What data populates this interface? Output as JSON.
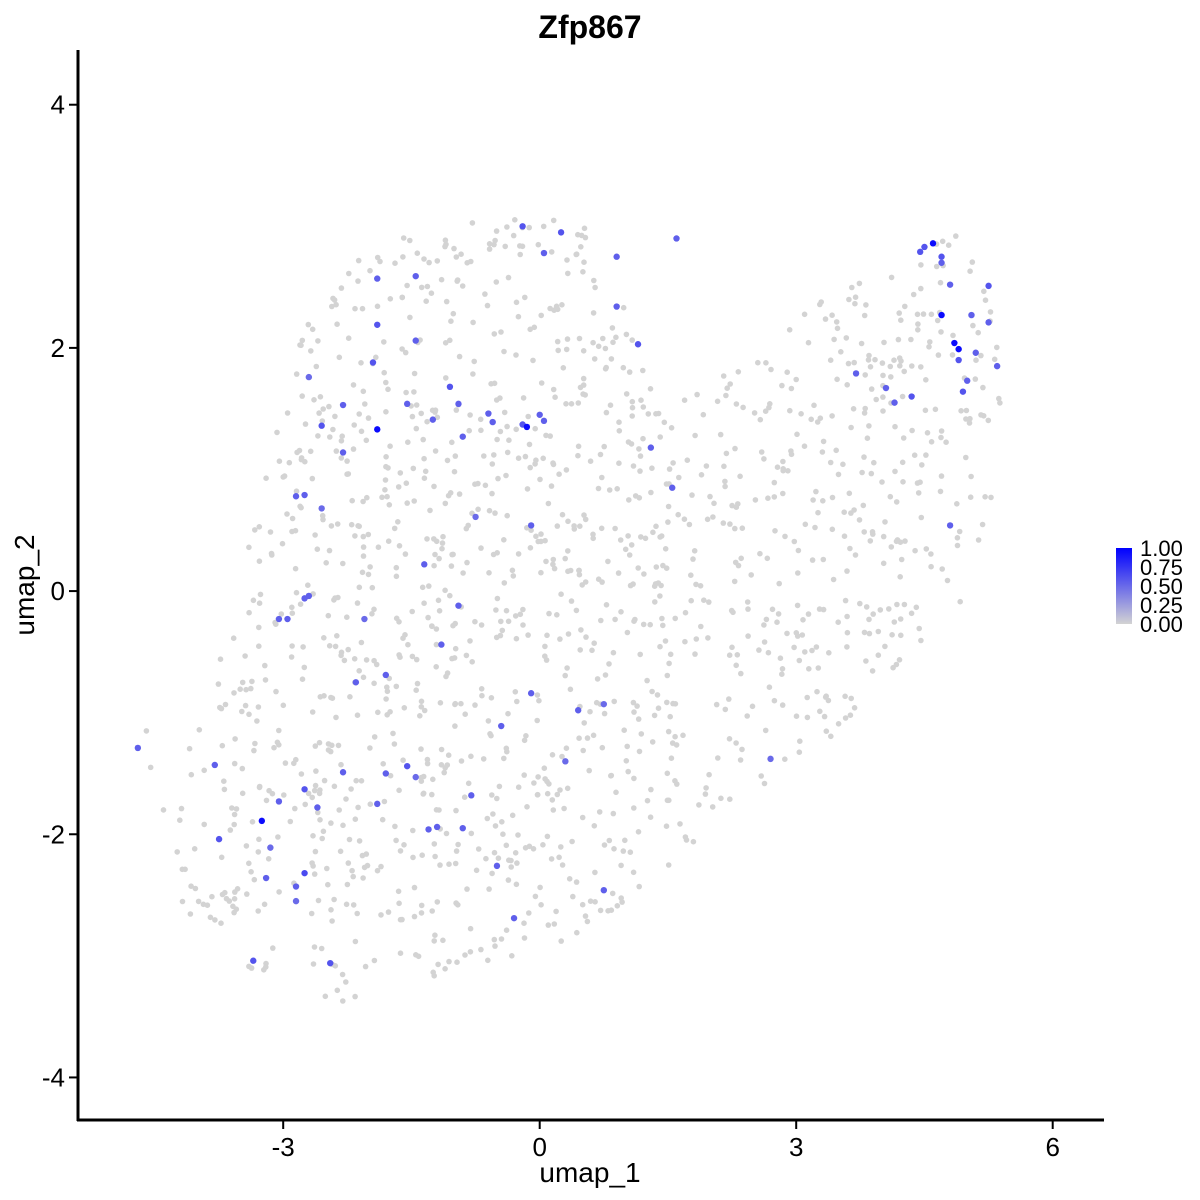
{
  "chart_data": {
    "type": "scatter",
    "title": "Zfp867",
    "xlabel": "umap_1",
    "ylabel": "umap_2",
    "xlim": [
      -5.4,
      6.6
    ],
    "ylim": [
      -4.35,
      4.45
    ],
    "x_ticks": [
      -3,
      0,
      3,
      6
    ],
    "y_ticks": [
      -4,
      -2,
      0,
      2,
      4
    ],
    "x_tick_labels": [
      "-3",
      "0",
      "3",
      "6"
    ],
    "y_tick_labels": [
      "-4",
      "-2",
      "0",
      "2",
      "4"
    ],
    "grid": false,
    "legend": {
      "placement": "right",
      "type": "colorbar",
      "ticks": [
        1.0,
        0.75,
        0.5,
        0.25,
        0.0
      ],
      "labels": [
        "1.00",
        "0.75",
        "0.50",
        "0.25",
        "0.00"
      ],
      "low_color": "#d3d3d3",
      "high_color": "#0000ff"
    },
    "zero_expression_color": "#d3d3d3",
    "background_cells_estimated_count": 1500,
    "expressing_cells": [
      {
        "x": -4.7,
        "y": -1.29,
        "value": 0.55
      },
      {
        "x": -3.8,
        "y": -1.43,
        "value": 0.55
      },
      {
        "x": -3.75,
        "y": -2.04,
        "value": 0.6
      },
      {
        "x": -3.25,
        "y": -1.89,
        "value": 0.95
      },
      {
        "x": -3.15,
        "y": -2.11,
        "value": 0.5
      },
      {
        "x": -3.05,
        "y": -1.73,
        "value": 0.55
      },
      {
        "x": -3.2,
        "y": -2.36,
        "value": 0.55
      },
      {
        "x": -2.85,
        "y": -2.43,
        "value": 0.55
      },
      {
        "x": -2.85,
        "y": -2.55,
        "value": 0.5
      },
      {
        "x": -2.75,
        "y": -2.32,
        "value": 0.65
      },
      {
        "x": -2.75,
        "y": -1.63,
        "value": 0.6
      },
      {
        "x": -2.6,
        "y": -1.78,
        "value": 0.55
      },
      {
        "x": -3.35,
        "y": -3.04,
        "value": 0.6
      },
      {
        "x": -2.45,
        "y": -3.06,
        "value": 0.6
      },
      {
        "x": -2.3,
        "y": -1.49,
        "value": 0.55
      },
      {
        "x": -1.9,
        "y": -1.75,
        "value": 0.55
      },
      {
        "x": -1.8,
        "y": -1.5,
        "value": 0.55
      },
      {
        "x": -1.55,
        "y": -1.44,
        "value": 0.6
      },
      {
        "x": -1.45,
        "y": -1.53,
        "value": 0.5
      },
      {
        "x": -1.3,
        "y": -1.96,
        "value": 0.55
      },
      {
        "x": -1.2,
        "y": -1.94,
        "value": 0.55
      },
      {
        "x": -0.9,
        "y": -1.95,
        "value": 0.55
      },
      {
        "x": -0.8,
        "y": -1.68,
        "value": 0.55
      },
      {
        "x": -0.5,
        "y": -2.26,
        "value": 0.55
      },
      {
        "x": -0.3,
        "y": -2.69,
        "value": 0.55
      },
      {
        "x": 0.75,
        "y": -2.46,
        "value": 0.55
      },
      {
        "x": -0.45,
        "y": -1.11,
        "value": 0.55
      },
      {
        "x": -0.1,
        "y": -0.84,
        "value": 0.55
      },
      {
        "x": 0.3,
        "y": -1.4,
        "value": 0.5
      },
      {
        "x": 0.45,
        "y": -0.98,
        "value": 0.55
      },
      {
        "x": 0.75,
        "y": -0.93,
        "value": 0.5
      },
      {
        "x": 2.7,
        "y": -1.38,
        "value": 0.5
      },
      {
        "x": -2.15,
        "y": -0.75,
        "value": 0.55
      },
      {
        "x": -1.8,
        "y": -0.69,
        "value": 0.55
      },
      {
        "x": -1.15,
        "y": -0.44,
        "value": 0.55
      },
      {
        "x": -2.95,
        "y": -0.23,
        "value": 0.55
      },
      {
        "x": -3.05,
        "y": -0.23,
        "value": 0.55
      },
      {
        "x": -2.7,
        "y": -0.04,
        "value": 0.55
      },
      {
        "x": -2.75,
        "y": -0.06,
        "value": 0.55
      },
      {
        "x": -2.05,
        "y": -0.23,
        "value": 0.5
      },
      {
        "x": -1.35,
        "y": 0.22,
        "value": 0.55
      },
      {
        "x": -0.95,
        "y": -0.12,
        "value": 0.55
      },
      {
        "x": -0.75,
        "y": 0.61,
        "value": 0.5
      },
      {
        "x": -0.1,
        "y": 0.54,
        "value": 0.55
      },
      {
        "x": -2.85,
        "y": 0.78,
        "value": 0.55
      },
      {
        "x": -2.75,
        "y": 0.79,
        "value": 0.55
      },
      {
        "x": -2.55,
        "y": 0.68,
        "value": 0.5
      },
      {
        "x": -2.55,
        "y": 1.36,
        "value": 0.6
      },
      {
        "x": -2.3,
        "y": 1.53,
        "value": 0.55
      },
      {
        "x": -2.3,
        "y": 1.14,
        "value": 0.55
      },
      {
        "x": -1.9,
        "y": 1.33,
        "value": 0.95
      },
      {
        "x": -1.95,
        "y": 1.88,
        "value": 0.6
      },
      {
        "x": -1.9,
        "y": 2.19,
        "value": 0.6
      },
      {
        "x": -1.9,
        "y": 2.57,
        "value": 0.55
      },
      {
        "x": -1.45,
        "y": 2.59,
        "value": 0.55
      },
      {
        "x": -1.45,
        "y": 2.06,
        "value": 0.55
      },
      {
        "x": -1.55,
        "y": 1.54,
        "value": 0.55
      },
      {
        "x": -1.25,
        "y": 1.41,
        "value": 0.55
      },
      {
        "x": -2.7,
        "y": 1.76,
        "value": 0.5
      },
      {
        "x": -1.05,
        "y": 1.68,
        "value": 0.6
      },
      {
        "x": -0.95,
        "y": 1.54,
        "value": 0.55
      },
      {
        "x": -0.9,
        "y": 1.27,
        "value": 0.55
      },
      {
        "x": -0.6,
        "y": 1.46,
        "value": 0.55
      },
      {
        "x": -0.55,
        "y": 1.39,
        "value": 0.55
      },
      {
        "x": -0.2,
        "y": 1.37,
        "value": 0.6
      },
      {
        "x": -0.15,
        "y": 1.35,
        "value": 0.95
      },
      {
        "x": 0.0,
        "y": 1.45,
        "value": 0.55
      },
      {
        "x": 0.05,
        "y": 1.4,
        "value": 0.55
      },
      {
        "x": -0.2,
        "y": 3.0,
        "value": 0.6
      },
      {
        "x": 0.05,
        "y": 2.78,
        "value": 0.55
      },
      {
        "x": 0.25,
        "y": 2.95,
        "value": 0.6
      },
      {
        "x": 0.9,
        "y": 2.75,
        "value": 0.55
      },
      {
        "x": 0.9,
        "y": 2.34,
        "value": 0.55
      },
      {
        "x": 1.15,
        "y": 2.03,
        "value": 0.6
      },
      {
        "x": 1.3,
        "y": 1.18,
        "value": 0.55
      },
      {
        "x": 1.55,
        "y": 0.85,
        "value": 0.55
      },
      {
        "x": 1.6,
        "y": 2.9,
        "value": 0.55
      },
      {
        "x": 3.7,
        "y": 1.79,
        "value": 0.55
      },
      {
        "x": 4.05,
        "y": 1.67,
        "value": 0.55
      },
      {
        "x": 4.15,
        "y": 1.55,
        "value": 0.55
      },
      {
        "x": 4.35,
        "y": 1.6,
        "value": 0.6
      },
      {
        "x": 4.45,
        "y": 2.79,
        "value": 0.6
      },
      {
        "x": 4.5,
        "y": 2.83,
        "value": 0.6
      },
      {
        "x": 4.6,
        "y": 2.86,
        "value": 0.95
      },
      {
        "x": 4.7,
        "y": 2.75,
        "value": 0.6
      },
      {
        "x": 4.7,
        "y": 2.7,
        "value": 0.55
      },
      {
        "x": 4.7,
        "y": 2.27,
        "value": 0.95
      },
      {
        "x": 4.8,
        "y": 2.52,
        "value": 0.55
      },
      {
        "x": 4.85,
        "y": 2.04,
        "value": 0.95
      },
      {
        "x": 4.9,
        "y": 1.99,
        "value": 0.95
      },
      {
        "x": 4.9,
        "y": 1.9,
        "value": 0.6
      },
      {
        "x": 4.95,
        "y": 1.64,
        "value": 0.6
      },
      {
        "x": 5.0,
        "y": 1.73,
        "value": 0.55
      },
      {
        "x": 5.05,
        "y": 2.27,
        "value": 0.55
      },
      {
        "x": 5.1,
        "y": 1.96,
        "value": 0.55
      },
      {
        "x": 5.25,
        "y": 2.51,
        "value": 0.6
      },
      {
        "x": 5.25,
        "y": 2.21,
        "value": 0.55
      },
      {
        "x": 5.35,
        "y": 1.85,
        "value": 0.55
      },
      {
        "x": 4.8,
        "y": 0.54,
        "value": 0.55
      }
    ]
  }
}
